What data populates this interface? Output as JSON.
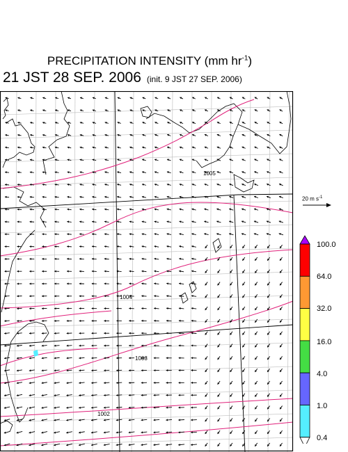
{
  "title": {
    "main": "PRECIPITATION INTENSITY (mm hr",
    "exponent": "-1",
    "close": ")"
  },
  "subtitle": {
    "valid_time": "21 JST 28 SEP. 2006",
    "init": "(init. 9 JST 27 SEP. 2006)"
  },
  "wind_reference": {
    "label_prefix": "20 m s",
    "label_exponent": "-1",
    "speed_ms": 20
  },
  "isobars": [
    {
      "label": "1005"
    },
    {
      "label": "1004"
    },
    {
      "label": "1003"
    },
    {
      "label": "1002"
    }
  ],
  "colorbar": {
    "ticks": [
      "100.0",
      "64.0",
      "32.0",
      "16.0",
      "4.0",
      "1.0",
      "0.4"
    ],
    "colors": [
      "#aa00ff",
      "#ff0000",
      "#ff9933",
      "#ffff44",
      "#44dd44",
      "#6666ff",
      "#55eeff",
      "#ffffff"
    ]
  },
  "map_colors": {
    "isobar": "#e0207a",
    "grid": "#b8b8b8",
    "coast": "#000000",
    "rain_patch": "#55eeff"
  }
}
